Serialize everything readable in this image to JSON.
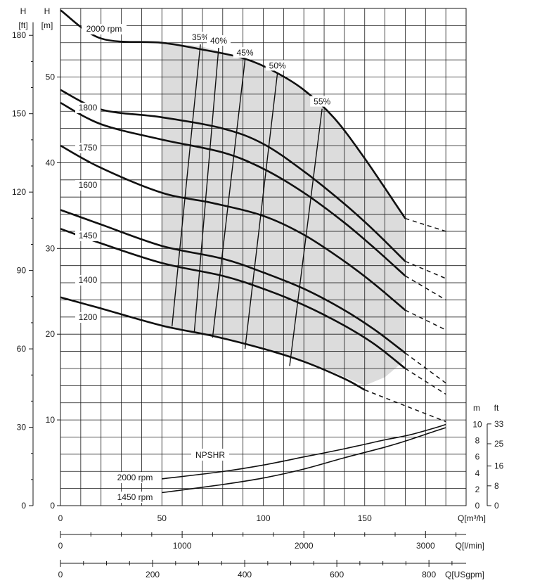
{
  "chart_data": {
    "type": "line",
    "title": "",
    "primary_axis": {
      "x_label": "Q[m³/h]",
      "x_range": [
        0,
        200
      ],
      "x_ticks": [
        0,
        50,
        100,
        150
      ],
      "y_label_m": "H [m]",
      "y_label_m_lines": [
        "H",
        "[m]"
      ],
      "y_range_m": [
        0,
        58
      ],
      "y_ticks_m": [
        0,
        10,
        20,
        30,
        40,
        50
      ],
      "y_label_ft_lines": [
        "H",
        "[ft]"
      ],
      "y_ticks_ft": [
        0,
        30,
        60,
        90,
        120,
        150,
        180
      ]
    },
    "secondary_x_axes": [
      {
        "label": "Q[l/min]",
        "ticks": [
          0,
          1000,
          2000,
          3000
        ],
        "m3h_per_unit": 0.06
      },
      {
        "label": "Q[USgpm]",
        "ticks": [
          0,
          200,
          400,
          600,
          800
        ],
        "m3h_per_unit": 0.2271
      }
    ],
    "npsh_axis": {
      "label_m": "m",
      "label_ft": "ft",
      "ticks_m": [
        0,
        2,
        4,
        6,
        8,
        10
      ],
      "ticks_ft": [
        0,
        8,
        16,
        25,
        33
      ]
    },
    "grid": true,
    "series": [
      {
        "name": "2000 rpm",
        "kind": "head",
        "x": [
          0,
          20,
          50,
          70,
          90,
          105,
          120,
          135,
          150,
          170
        ],
        "y": [
          57.8,
          54.5,
          54.0,
          53.2,
          52.2,
          50.7,
          48.5,
          45.2,
          40.5,
          33.5
        ],
        "dashed_x": [
          170,
          190
        ],
        "dashed_y": [
          33.5,
          32.0
        ]
      },
      {
        "name": "1800",
        "kind": "head",
        "x": [
          0,
          20,
          50,
          80,
          100,
          120,
          140,
          155,
          170
        ],
        "y": [
          48.5,
          46.2,
          45.3,
          44.0,
          42.2,
          39.0,
          35.2,
          32.0,
          28.5
        ],
        "dashed_x": [
          170,
          190
        ],
        "dashed_y": [
          28.5,
          26.5
        ]
      },
      {
        "name": "1750",
        "kind": "head",
        "x": [
          0,
          20,
          50,
          80,
          100,
          120,
          140,
          155,
          170
        ],
        "y": [
          47.0,
          44.5,
          42.7,
          41.2,
          39.3,
          36.5,
          33.0,
          30.0,
          26.8
        ],
        "dashed_x": [
          170,
          190
        ],
        "dashed_y": [
          26.8,
          24.0
        ]
      },
      {
        "name": "1600",
        "kind": "head",
        "x": [
          0,
          20,
          50,
          75,
          100,
          120,
          140,
          155,
          170
        ],
        "y": [
          42.0,
          39.4,
          36.5,
          35.3,
          33.8,
          31.6,
          28.5,
          25.8,
          22.8
        ],
        "dashed_x": [
          170,
          190
        ],
        "dashed_y": [
          22.8,
          20.5
        ]
      },
      {
        "name": "1450",
        "kind": "head",
        "x": [
          0,
          20,
          50,
          80,
          100,
          120,
          140,
          155,
          170
        ],
        "y": [
          34.5,
          32.8,
          30.3,
          28.8,
          27.2,
          25.3,
          22.8,
          20.5,
          17.8
        ],
        "dashed_x": [
          170,
          190
        ],
        "dashed_y": [
          17.8,
          14.3
        ]
      },
      {
        "name": "1400",
        "kind": "head",
        "x": [
          0,
          20,
          50,
          80,
          100,
          120,
          140,
          155,
          170
        ],
        "y": [
          32.3,
          30.6,
          28.3,
          26.8,
          25.3,
          23.4,
          21.0,
          18.8,
          16.0
        ],
        "dashed_x": [
          170,
          190
        ],
        "dashed_y": [
          16.0,
          13.0
        ]
      },
      {
        "name": "1200",
        "kind": "head",
        "x": [
          0,
          20,
          50,
          75,
          100,
          120,
          140,
          150
        ],
        "y": [
          24.3,
          23.0,
          21.0,
          19.8,
          18.3,
          16.8,
          14.8,
          13.5
        ],
        "dashed_x": [
          150,
          190
        ],
        "dashed_y": [
          13.5,
          9.8
        ]
      },
      {
        "name": "2000 rpm",
        "kind": "npshr",
        "x": [
          50,
          80,
          100,
          120,
          140,
          160,
          172,
          185,
          190
        ],
        "y": [
          3.3,
          4.2,
          5.0,
          6.0,
          7.0,
          8.1,
          8.7,
          9.6,
          10.0
        ]
      },
      {
        "name": "1450 rpm",
        "kind": "npshr",
        "x": [
          50,
          80,
          100,
          120,
          140,
          160,
          172,
          185,
          190
        ],
        "y": [
          1.6,
          2.6,
          3.4,
          4.5,
          5.9,
          7.2,
          8.1,
          9.2,
          9.6
        ]
      }
    ],
    "npshr_label": "NPSHR",
    "efficiency_lines": [
      {
        "label": "35%",
        "x": [
          55,
          69
        ],
        "y": [
          20.9,
          53.8
        ]
      },
      {
        "label": "40%",
        "x": [
          66,
          78
        ],
        "y": [
          20.3,
          53.4
        ]
      },
      {
        "label": "45%",
        "x": [
          75,
          91
        ],
        "y": [
          19.6,
          52.0
        ]
      },
      {
        "label": "50%",
        "x": [
          91,
          107
        ],
        "y": [
          18.3,
          50.5
        ]
      },
      {
        "label": "55%",
        "x": [
          113,
          129
        ],
        "y": [
          16.3,
          46.3
        ]
      }
    ],
    "operating_region_polygon": {
      "x": [
        50,
        50,
        69,
        91,
        105,
        120,
        135,
        150,
        170,
        170,
        160,
        150,
        130,
        100,
        75,
        50
      ],
      "y": [
        20.8,
        54.0,
        53.6,
        52.2,
        50.7,
        48.5,
        45.2,
        40.5,
        33.5,
        17.0,
        15.0,
        14.0,
        16.0,
        18.2,
        19.8,
        20.8
      ]
    },
    "colors": {
      "line": "#111111",
      "region": "#dcdcdc",
      "grid": "#1a1a1a"
    }
  }
}
